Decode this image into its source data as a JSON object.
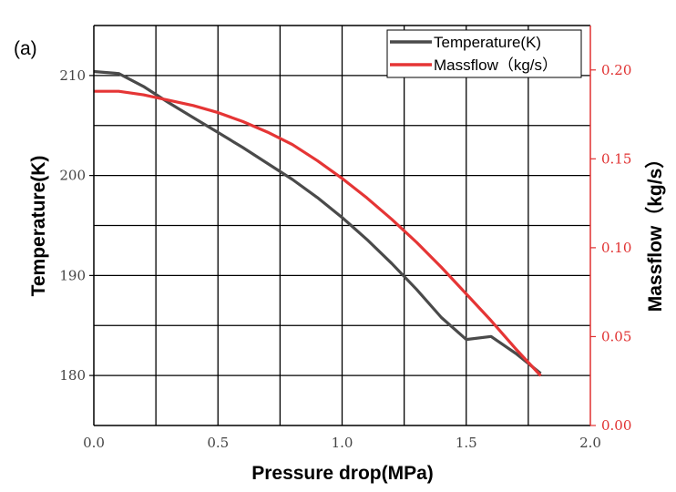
{
  "panel_label": "(a)",
  "colors": {
    "temperature": "#4a4a4a",
    "massflow": "#e53535",
    "grid": "#000000",
    "right_axis": "#e03030"
  },
  "chart_data": {
    "type": "line",
    "xlabel": "Pressure drop(MPa)",
    "ylabel": "Temperature(K)",
    "y2label": "Massflow（kg/s）",
    "xlim": [
      0.0,
      2.0
    ],
    "ylim": [
      175,
      215
    ],
    "y2lim": [
      0.0,
      0.225
    ],
    "x_ticks": [
      0.0,
      0.5,
      1.0,
      1.5,
      2.0
    ],
    "x_tick_labels": [
      "0.0",
      "0.5",
      "1.0",
      "1.5",
      "2.0"
    ],
    "y_ticks": [
      180,
      190,
      200,
      210
    ],
    "y_tick_labels": [
      "180",
      "190",
      "200",
      "210"
    ],
    "y2_ticks": [
      0.0,
      0.05,
      0.1,
      0.15,
      0.2
    ],
    "y2_tick_labels": [
      "0.00",
      "0.05",
      "0.10",
      "0.15",
      "0.20"
    ],
    "grid": true,
    "legend": "top-right",
    "series": [
      {
        "name": "Temperature(K)",
        "axis": "left",
        "x": [
          0.0,
          0.1,
          0.2,
          0.3,
          0.4,
          0.5,
          0.6,
          0.7,
          0.8,
          0.9,
          1.0,
          1.1,
          1.2,
          1.3,
          1.4,
          1.5,
          1.6,
          1.7,
          1.8
        ],
        "values": [
          210.4,
          210.2,
          208.9,
          207.3,
          205.8,
          204.3,
          202.8,
          201.2,
          199.6,
          197.8,
          195.8,
          193.6,
          191.2,
          188.6,
          185.8,
          183.6,
          183.9,
          182.2,
          180.2
        ]
      },
      {
        "name": "Massflow（kg/s）",
        "axis": "right",
        "x": [
          0.0,
          0.1,
          0.2,
          0.3,
          0.4,
          0.5,
          0.6,
          0.7,
          0.8,
          0.9,
          1.0,
          1.1,
          1.2,
          1.3,
          1.4,
          1.5,
          1.6,
          1.7,
          1.8
        ],
        "values": [
          0.188,
          0.188,
          0.186,
          0.183,
          0.18,
          0.176,
          0.171,
          0.165,
          0.158,
          0.149,
          0.139,
          0.128,
          0.116,
          0.103,
          0.089,
          0.074,
          0.059,
          0.043,
          0.028
        ]
      }
    ]
  }
}
